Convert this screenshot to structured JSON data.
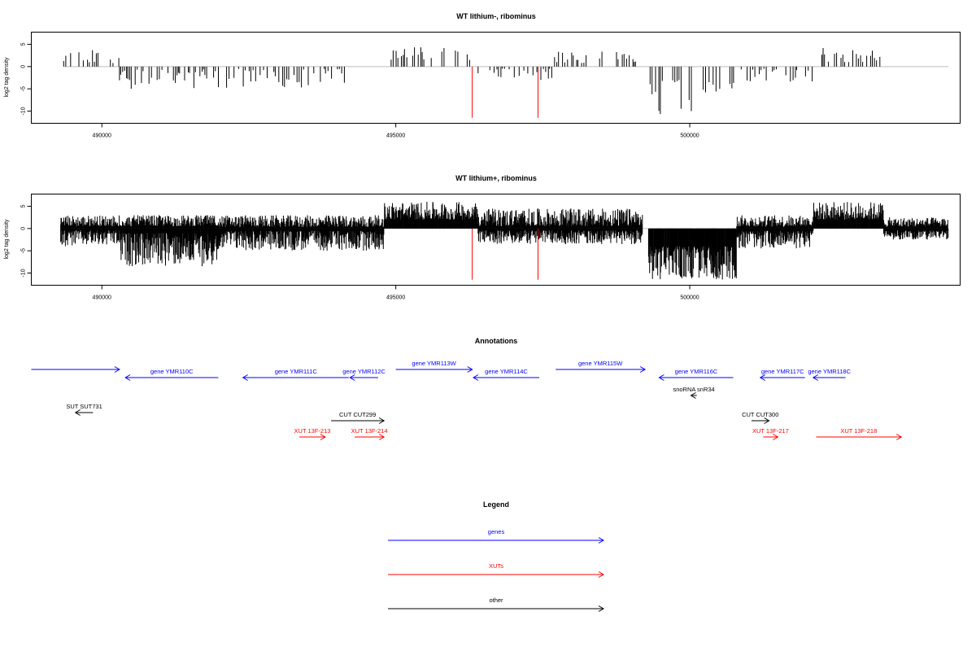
{
  "chart_data": [
    {
      "type": "bar",
      "title": "WT lithium-, ribominus",
      "ylabel": "log2 tag density",
      "xlim": [
        488800,
        504600
      ],
      "ylim": [
        -12,
        7
      ],
      "x_ticks": [
        490000,
        495000,
        500000
      ],
      "y_ticks": [
        5,
        0,
        -5,
        -10
      ],
      "density": "sparse",
      "colors": {
        "bars": "#000000",
        "markers": "#ff0000",
        "baseline": "#bbbbbb"
      },
      "marker_lines": [
        {
          "x": 496300,
          "y": -11.5
        },
        {
          "x": 497420,
          "y": -11.5
        }
      ],
      "regions": [
        {
          "x0": 489350,
          "x1": 490300,
          "sign": 1,
          "min": 0.8,
          "max": 3.8
        },
        {
          "x0": 490300,
          "x1": 491900,
          "sign": -1,
          "min": 0.6,
          "max": 5
        },
        {
          "x0": 491900,
          "x1": 494300,
          "sign": -1,
          "min": 0.5,
          "max": 4.8
        },
        {
          "x0": 494900,
          "x1": 496400,
          "sign": 1,
          "min": 1.5,
          "max": 4.5
        },
        {
          "x0": 496400,
          "x1": 497700,
          "sign": -1,
          "min": 0.4,
          "max": 3
        },
        {
          "x0": 497700,
          "x1": 499200,
          "sign": 1,
          "min": 0.8,
          "max": 3.5
        },
        {
          "x0": 499300,
          "x1": 500750,
          "sign": -1,
          "min": 3,
          "max": 11.5
        },
        {
          "x0": 500800,
          "x1": 502100,
          "sign": -1,
          "min": 0.4,
          "max": 3.5
        },
        {
          "x0": 502100,
          "x1": 503300,
          "sign": 1,
          "min": 1,
          "max": 4.5
        }
      ]
    },
    {
      "type": "bar",
      "title": "WT lithium+, ribominus",
      "ylabel": "log2 tag density",
      "xlim": [
        488800,
        504600
      ],
      "ylim": [
        -12,
        7
      ],
      "x_ticks": [
        490000,
        495000,
        500000
      ],
      "y_ticks": [
        5,
        0,
        -5,
        -10
      ],
      "density": "dense",
      "colors": {
        "bars": "#000000",
        "markers": "#ff0000",
        "baseline": "#bbbbbb"
      },
      "marker_lines": [
        {
          "x": 496300,
          "y": -11.5
        },
        {
          "x": 497420,
          "y": -11.5
        }
      ],
      "regions": [
        {
          "x0": 489300,
          "x1": 490300,
          "sign": 1,
          "min": 0.5,
          "max": 3
        },
        {
          "x0": 489300,
          "x1": 490300,
          "sign": -1,
          "min": 0.4,
          "max": 4
        },
        {
          "x0": 490300,
          "x1": 492000,
          "sign": -1,
          "min": 1,
          "max": 8.5
        },
        {
          "x0": 490300,
          "x1": 492000,
          "sign": 1,
          "min": 0.5,
          "max": 3
        },
        {
          "x0": 492000,
          "x1": 494800,
          "sign": -1,
          "min": 0.5,
          "max": 5
        },
        {
          "x0": 492000,
          "x1": 494800,
          "sign": 1,
          "min": 0.3,
          "max": 3
        },
        {
          "x0": 494800,
          "x1": 496400,
          "sign": 1,
          "min": 2,
          "max": 6
        },
        {
          "x0": 496400,
          "x1": 499200,
          "sign": -1,
          "min": 0.4,
          "max": 3.5
        },
        {
          "x0": 496400,
          "x1": 499200,
          "sign": 1,
          "min": 0.5,
          "max": 4.5
        },
        {
          "x0": 499300,
          "x1": 500800,
          "sign": -1,
          "min": 4,
          "max": 11.5
        },
        {
          "x0": 500800,
          "x1": 502100,
          "sign": -1,
          "min": 0.5,
          "max": 4.5
        },
        {
          "x0": 500800,
          "x1": 502100,
          "sign": 1,
          "min": 0.4,
          "max": 3
        },
        {
          "x0": 502100,
          "x1": 503300,
          "sign": 1,
          "min": 2,
          "max": 6
        },
        {
          "x0": 503300,
          "x1": 504400,
          "sign": 1,
          "min": 0.4,
          "max": 2.5
        },
        {
          "x0": 503300,
          "x1": 504400,
          "sign": -1,
          "min": 0.4,
          "max": 2.5
        }
      ]
    }
  ],
  "annotations": {
    "title": "Annotations",
    "colors": {
      "genes": "#0000ff",
      "xuts": "#ff0000",
      "other": "#000000"
    },
    "features": [
      {
        "id": "gene-ymr109w",
        "label": "",
        "start": 488800,
        "end": 490300,
        "strand": "+",
        "row": 0,
        "kind": "genes"
      },
      {
        "id": "gene-ymr110c",
        "label": "gene YMR110C",
        "start": 490400,
        "end": 491980,
        "strand": "-",
        "row": 1,
        "kind": "genes"
      },
      {
        "id": "gene-ymr111c",
        "label": "gene YMR111C",
        "start": 492400,
        "end": 494200,
        "strand": "-",
        "row": 1,
        "kind": "genes"
      },
      {
        "id": "gene-ymr112c",
        "label": "gene YMR112C",
        "start": 494220,
        "end": 494700,
        "strand": "-",
        "row": 1,
        "kind": "genes"
      },
      {
        "id": "gene-ymr113w",
        "label": "gene YMR113W",
        "start": 495000,
        "end": 496300,
        "strand": "+",
        "row": 0,
        "kind": "genes"
      },
      {
        "id": "gene-ymr114c",
        "label": "gene YMR114C",
        "start": 496320,
        "end": 497440,
        "strand": "-",
        "row": 1,
        "kind": "genes"
      },
      {
        "id": "gene-ymr115w",
        "label": "gene YMR115W",
        "start": 497720,
        "end": 499240,
        "strand": "+",
        "row": 0,
        "kind": "genes"
      },
      {
        "id": "gene-ymr116c",
        "label": "gene YMR116C",
        "start": 499480,
        "end": 500740,
        "strand": "-",
        "row": 1,
        "kind": "genes"
      },
      {
        "id": "gene-ymr117c",
        "label": "gene YMR117C",
        "start": 501200,
        "end": 501960,
        "strand": "-",
        "row": 1,
        "kind": "genes"
      },
      {
        "id": "gene-ymr118c",
        "label": "gene YMR118C",
        "start": 502100,
        "end": 502650,
        "strand": "-",
        "row": 1,
        "kind": "genes"
      },
      {
        "id": "snorna-snr34",
        "label": "snoRNA snR34",
        "start": 500020,
        "end": 500120,
        "strand": "-",
        "row": 2,
        "kind": "other"
      },
      {
        "id": "sut731",
        "label": "SUT SUT731",
        "start": 489550,
        "end": 489850,
        "strand": "-",
        "row": 3,
        "kind": "other"
      },
      {
        "id": "cut299",
        "label": "CUT CUT299",
        "start": 493900,
        "end": 494800,
        "strand": "+",
        "row": 4,
        "kind": "other"
      },
      {
        "id": "cut300",
        "label": "CUT CUT300",
        "start": 501050,
        "end": 501350,
        "strand": "+",
        "row": 4,
        "kind": "other"
      },
      {
        "id": "xut-213",
        "label": "XUT 13F-213",
        "start": 493360,
        "end": 493800,
        "strand": "+",
        "row": 5,
        "kind": "xuts"
      },
      {
        "id": "xut-214",
        "label": "XUT 13F-214",
        "start": 494300,
        "end": 494800,
        "strand": "+",
        "row": 5,
        "kind": "xuts"
      },
      {
        "id": "xut-217",
        "label": "XUT 13F-217",
        "start": 501250,
        "end": 501500,
        "strand": "+",
        "row": 5,
        "kind": "xuts"
      },
      {
        "id": "xut-218",
        "label": "XUT 13F-218",
        "start": 502150,
        "end": 503600,
        "strand": "+",
        "row": 5,
        "kind": "xuts"
      }
    ]
  },
  "legend": {
    "title": "Legend",
    "items": [
      {
        "label": "genes",
        "color": "#0000ff"
      },
      {
        "label": "XUTs",
        "color": "#ff0000"
      },
      {
        "label": "other",
        "color": "#000000"
      }
    ]
  }
}
